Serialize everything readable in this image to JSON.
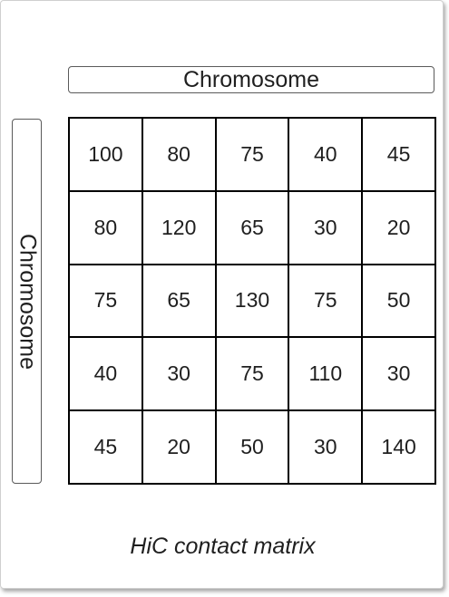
{
  "column_axis_label": "Chromosome",
  "row_axis_label": "Chromosome",
  "caption": "HiC contact matrix",
  "matrix": [
    [
      "100",
      "80",
      "75",
      "40",
      "45"
    ],
    [
      "80",
      "120",
      "65",
      "30",
      "20"
    ],
    [
      "75",
      "65",
      "130",
      "75",
      "50"
    ],
    [
      "40",
      "30",
      "75",
      "110",
      "30"
    ],
    [
      "45",
      "20",
      "50",
      "30",
      "140"
    ]
  ]
}
